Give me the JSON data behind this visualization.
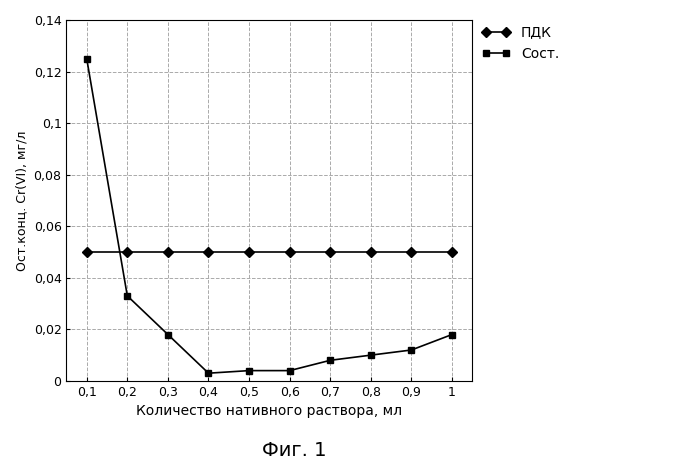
{
  "x": [
    0.1,
    0.2,
    0.3,
    0.4,
    0.5,
    0.6,
    0.7,
    0.8,
    0.9,
    1.0
  ],
  "pdk_y": [
    0.05,
    0.05,
    0.05,
    0.05,
    0.05,
    0.05,
    0.05,
    0.05,
    0.05,
    0.05
  ],
  "sost_y": [
    0.125,
    0.033,
    0.018,
    0.003,
    0.004,
    0.004,
    0.008,
    0.01,
    0.012,
    0.018
  ],
  "pdk_label": "ПДК",
  "sost_label": "Сост.",
  "xlabel": "Количество нативного раствора, мл",
  "ylabel": "Ост.конц. Cr(VI), мг/л",
  "figure_label": "Фиг. 1",
  "ylim": [
    0,
    0.14
  ],
  "xlim": [
    0.05,
    1.05
  ],
  "yticks": [
    0,
    0.02,
    0.04,
    0.06,
    0.08,
    0.1,
    0.12,
    0.14
  ],
  "xticks": [
    0.1,
    0.2,
    0.3,
    0.4,
    0.5,
    0.6,
    0.7,
    0.8,
    0.9,
    1.0
  ],
  "line_color": "#000000",
  "grid_color": "#aaaaaa",
  "background_color": "#ffffff"
}
